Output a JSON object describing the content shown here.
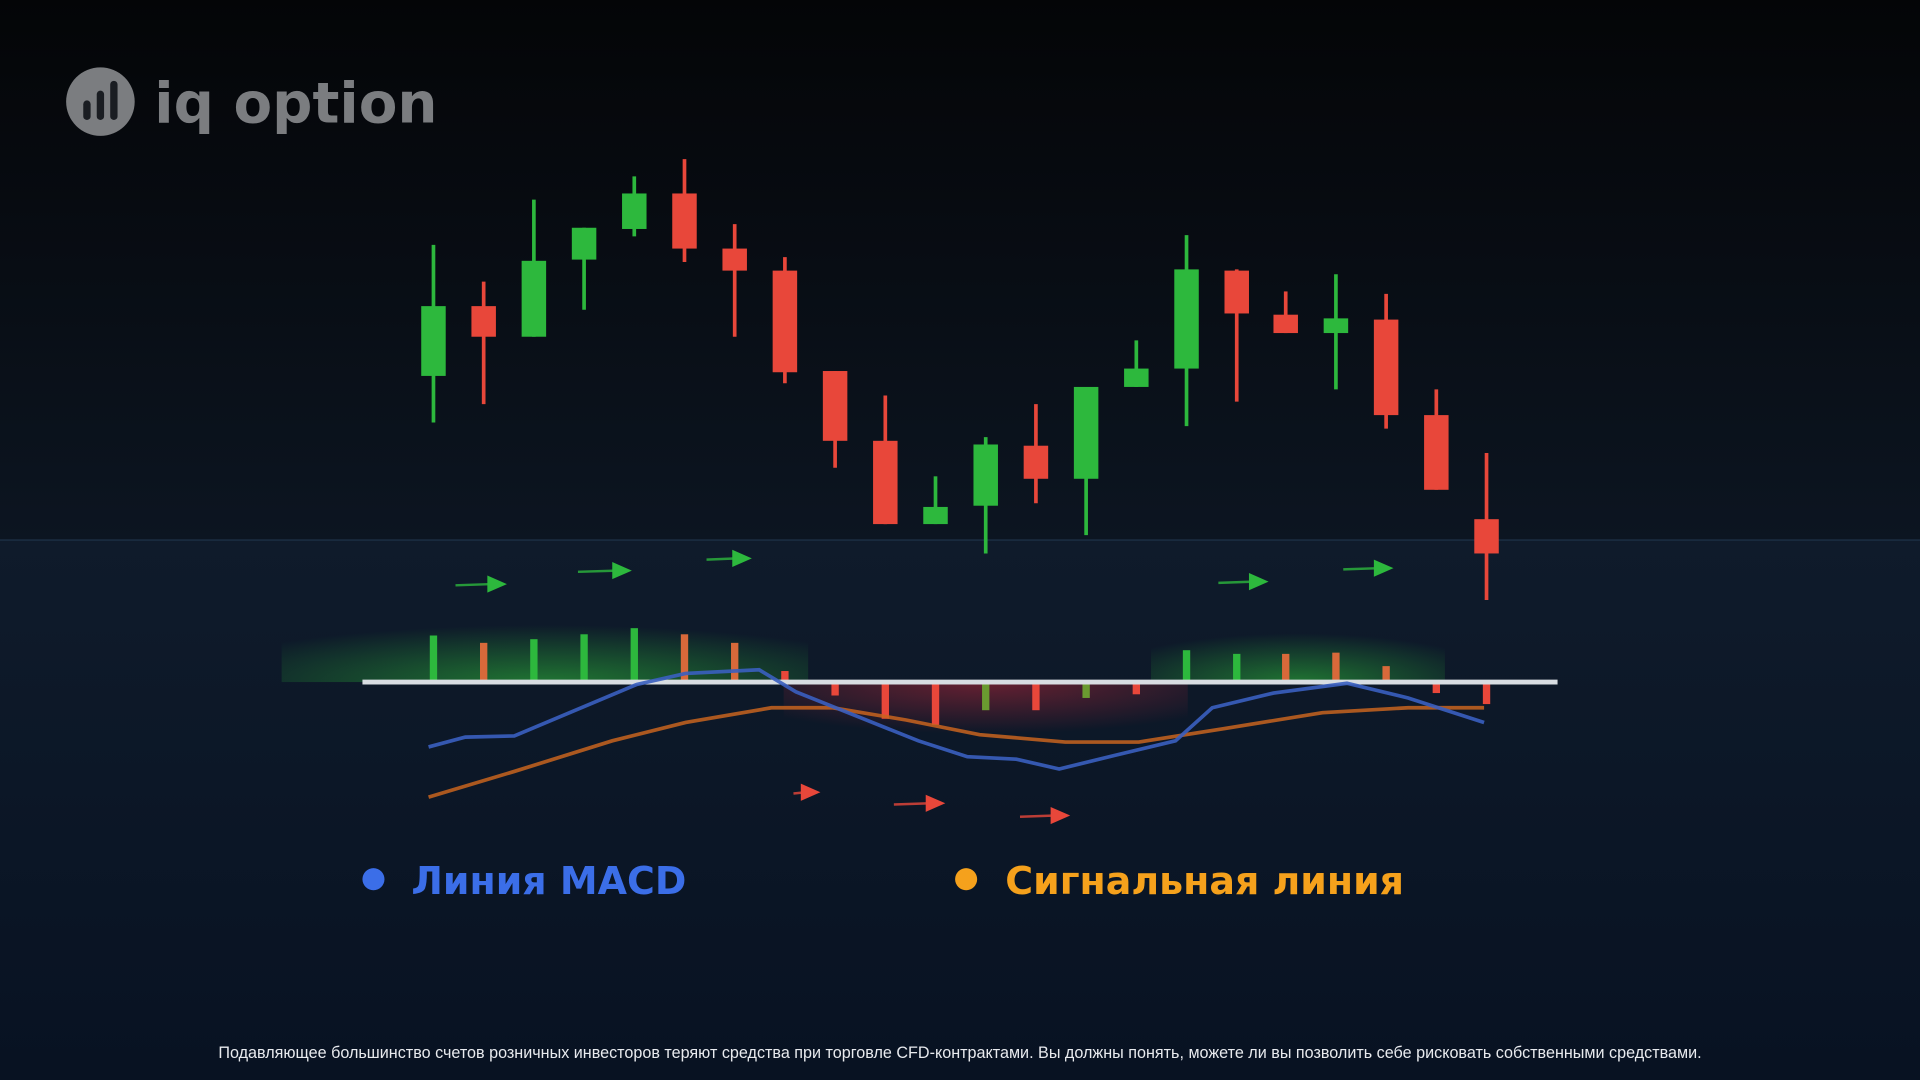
{
  "logo": {
    "text": "iq option"
  },
  "legend": {
    "macd": "Линия MACD",
    "signal": "Сигнальная линия"
  },
  "disclaimer": "Подавляющее большинство счетов розничных инвесторов теряют средства при торговле CFD-контрактами. Вы должны понять, можете ли вы позволить себе рисковать собственными средствами."
}
